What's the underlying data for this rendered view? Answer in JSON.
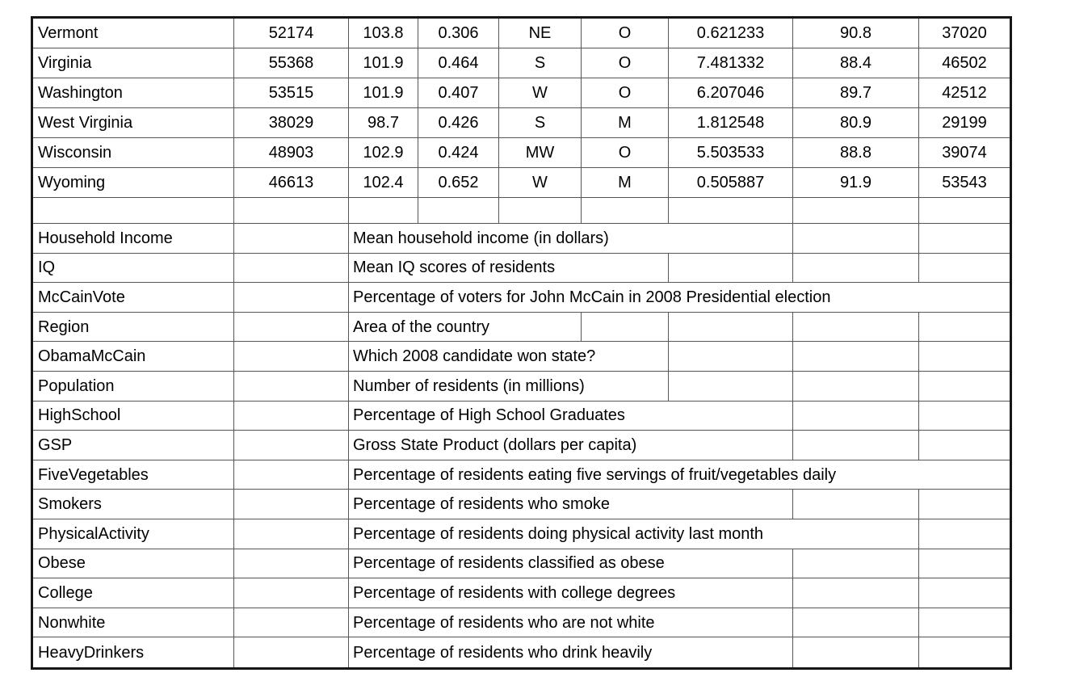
{
  "page": {
    "background_color": "#ffffff"
  },
  "table": {
    "outer_border_color": "#161616",
    "grid_line_color": "#565656",
    "text_color": "#000000",
    "states": [
      {
        "name": "Vermont",
        "household_income": "52174",
        "iq": "103.8",
        "mccain_vote": "0.306",
        "region": "NE",
        "obama_mccain": "O",
        "population": "0.621233",
        "high_school": "90.8",
        "gsp": "37020"
      },
      {
        "name": "Virginia",
        "household_income": "55368",
        "iq": "101.9",
        "mccain_vote": "0.464",
        "region": "S",
        "obama_mccain": "O",
        "population": "7.481332",
        "high_school": "88.4",
        "gsp": "46502"
      },
      {
        "name": "Washington",
        "household_income": "53515",
        "iq": "101.9",
        "mccain_vote": "0.407",
        "region": "W",
        "obama_mccain": "O",
        "population": "6.207046",
        "high_school": "89.7",
        "gsp": "42512"
      },
      {
        "name": "West Virginia",
        "household_income": "38029",
        "iq": "98.7",
        "mccain_vote": "0.426",
        "region": "S",
        "obama_mccain": "M",
        "population": "1.812548",
        "high_school": "80.9",
        "gsp": "29199"
      },
      {
        "name": "Wisconsin",
        "household_income": "48903",
        "iq": "102.9",
        "mccain_vote": "0.424",
        "region": "MW",
        "obama_mccain": "O",
        "population": "5.503533",
        "high_school": "88.8",
        "gsp": "39074"
      },
      {
        "name": "Wyoming",
        "household_income": "46613",
        "iq": "102.4",
        "mccain_vote": "0.652",
        "region": "W",
        "obama_mccain": "M",
        "population": "0.505887",
        "high_school": "91.9",
        "gsp": "53543"
      }
    ],
    "dictionary": [
      {
        "variable": "Household Income",
        "description": "Mean household income (in dollars)"
      },
      {
        "variable": "IQ",
        "description": "Mean IQ scores of residents"
      },
      {
        "variable": "McCainVote",
        "description": "Percentage of voters for John McCain in 2008 Presidential election"
      },
      {
        "variable": "Region",
        "description": "Area of the country"
      },
      {
        "variable": "ObamaMcCain",
        "description": "Which 2008 candidate won state?"
      },
      {
        "variable": "Population",
        "description": "Number of residents (in millions)"
      },
      {
        "variable": "HighSchool",
        "description": "Percentage of High School Graduates"
      },
      {
        "variable": "GSP",
        "description": "Gross State Product (dollars per capita)"
      },
      {
        "variable": "FiveVegetables",
        "description": "Percentage of residents eating five servings of fruit/vegetables daily"
      },
      {
        "variable": "Smokers",
        "description": "Percentage of residents who smoke"
      },
      {
        "variable": "PhysicalActivity",
        "description": "Percentage of residents doing physical activity last month"
      },
      {
        "variable": "Obese",
        "description": "Percentage of residents classified as obese"
      },
      {
        "variable": "College",
        "description": "Percentage of residents with college degrees"
      },
      {
        "variable": "Nonwhite",
        "description": "Percentage of residents who are not white"
      },
      {
        "variable": "HeavyDrinkers",
        "description": "Percentage of residents who drink heavily"
      }
    ]
  }
}
